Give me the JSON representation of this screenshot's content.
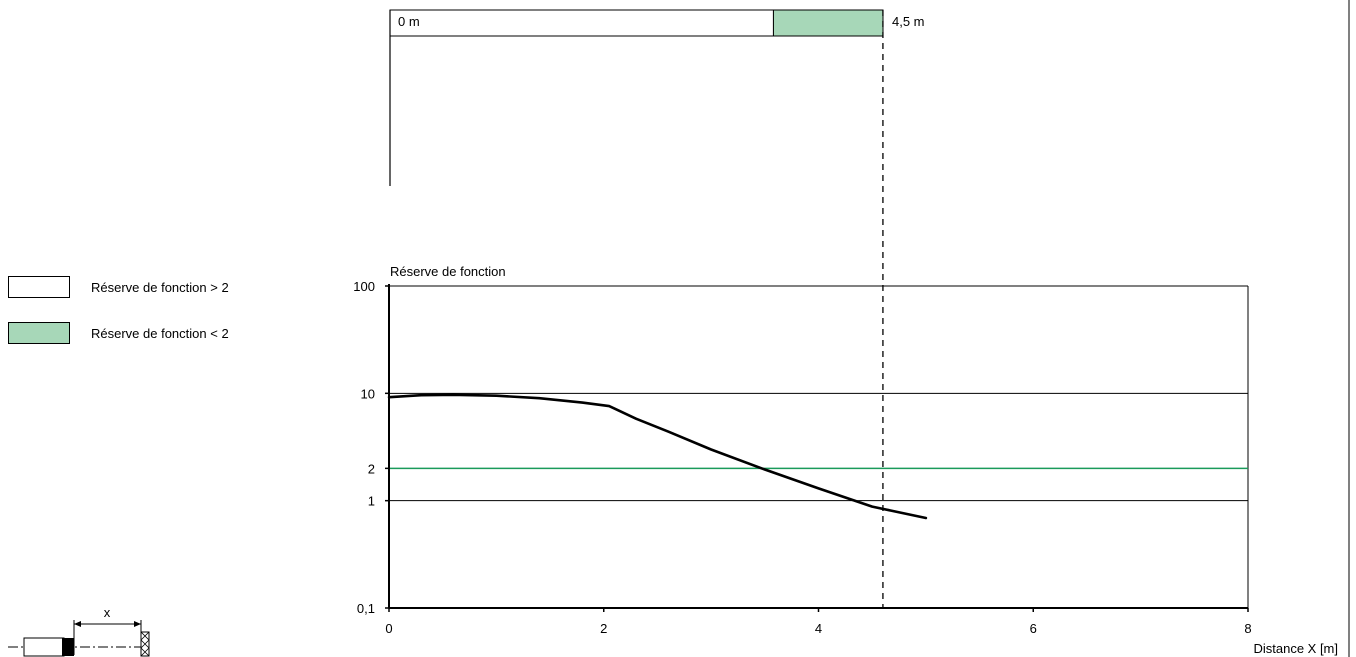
{
  "range_bar": {
    "start_label": "0 m",
    "end_label": "4,5 m",
    "reserve_above_color": "#ffffff",
    "reserve_below_color": "#a7d7b8",
    "segments": [
      {
        "from": 0,
        "to": 3.5,
        "reserve": "> 2"
      },
      {
        "from": 3.5,
        "to": 4.5,
        "reserve": "< 2"
      }
    ]
  },
  "legend": [
    {
      "label": "Réserve de fonction > 2",
      "color": "#ffffff"
    },
    {
      "label": "Réserve de fonction < 2",
      "color": "#a7d7b8"
    }
  ],
  "diagram": {
    "dimension_label": "x"
  },
  "colors": {
    "curve": "#000000",
    "reference_line": "#1a9a5a",
    "grid": "#000000",
    "reserve_below": "#a7d7b8"
  },
  "chart_data": {
    "type": "line",
    "title": "",
    "ylabel": "Réserve de fonction",
    "xlabel": "Distance X [m]",
    "xlim": [
      0,
      8
    ],
    "ylim": [
      0.1,
      100
    ],
    "yscale": "log",
    "xticks": [
      0,
      2,
      4,
      6,
      8
    ],
    "xtick_labels": [
      "0",
      "2",
      "4",
      "6",
      "8"
    ],
    "yticks": [
      0.1,
      1,
      2,
      10,
      100
    ],
    "ytick_labels": [
      "0,1",
      "1",
      "2",
      "10",
      "100"
    ],
    "hgrid": [
      1,
      10,
      100
    ],
    "reference_line": {
      "y": 2
    },
    "marker_line": {
      "x": 4.6,
      "style": "dashed"
    },
    "series": [
      {
        "x": [
          0,
          0.3,
          0.6,
          1.0,
          1.4,
          1.8,
          2.05,
          2.1,
          2.3,
          2.6,
          3.0,
          3.5,
          4.0,
          4.5,
          5.0
        ],
        "y": [
          9.2,
          9.6,
          9.7,
          9.5,
          9.0,
          8.2,
          7.6,
          7.2,
          5.8,
          4.4,
          3.0,
          1.95,
          1.3,
          0.88,
          0.69
        ]
      }
    ]
  }
}
